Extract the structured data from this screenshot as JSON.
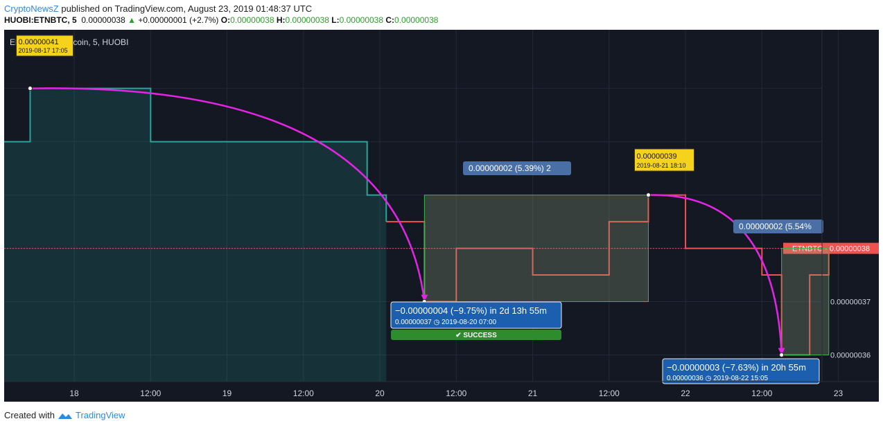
{
  "header": {
    "brand": "CryptoNewsZ",
    "published": " published on TradingView.com, August 23, 2019 01:48:37 UTC",
    "symbol": "HUOBI:ETNBTC, 5",
    "last": "0.00000038",
    "change": "+0.00000001 (+2.7%)",
    "o_label": "O:",
    "o_value": "0.00000038",
    "h_label": "H:",
    "h_value": "0.00000038",
    "l_label": "L:",
    "l_value": "0.00000038",
    "c_label": "C:",
    "c_value": "0.00000038"
  },
  "footer": {
    "created_with": "Created with",
    "brand": "TradingView"
  },
  "chart_data": {
    "type": "line",
    "title": "Electroneum / Bitcoin, 5, HUOBI",
    "x_ticks": [
      "18",
      "12:00",
      "19",
      "12:00",
      "20",
      "12:00",
      "21",
      "12:00",
      "22",
      "12:00",
      "23"
    ],
    "y_ticks": [
      "0.00000037",
      "0.00000036"
    ],
    "ylim": [
      3.55e-07,
      4.21e-07
    ],
    "series": [
      {
        "name": "ETNBTC",
        "x": [
          "2019-08-17 13:00",
          "2019-08-17 17:05",
          "2019-08-18 00:00",
          "2019-08-18 12:00",
          "2019-08-19 00:00",
          "2019-08-19 12:00",
          "2019-08-19 22:00",
          "2019-08-20 01:00",
          "2019-08-20 07:00",
          "2019-08-20 12:00",
          "2019-08-21 00:00",
          "2019-08-21 12:00",
          "2019-08-21 18:10",
          "2019-08-22 00:00",
          "2019-08-22 06:00",
          "2019-08-22 12:00",
          "2019-08-22 15:05",
          "2019-08-22 19:30",
          "2019-08-22 22:30"
        ],
        "values": [
          4e-07,
          4.1e-07,
          4.1e-07,
          4e-07,
          4e-07,
          4e-07,
          3.9e-07,
          3.85e-07,
          3.7e-07,
          3.8e-07,
          3.75e-07,
          3.85e-07,
          3.9e-07,
          3.8e-07,
          3.8e-07,
          3.75e-07,
          3.6e-07,
          3.75e-07,
          3.8e-07
        ]
      }
    ],
    "last_price_label": "ETNBTC · 0.00000038",
    "grid": true,
    "annotations": [
      {
        "type": "callout",
        "price": "0.00000041",
        "time": "2019-08-17 17:05"
      },
      {
        "type": "callout",
        "price": "0.00000039",
        "time": "2019-08-21 18:10"
      },
      {
        "type": "measure",
        "text": "0.00000002 (5.39%) 2"
      },
      {
        "type": "measure",
        "text": "0.00000002 (5.54%"
      },
      {
        "type": "result",
        "line1": "−0.00000004 (−9.75%) in 2d 13h 55m",
        "price": "0.00000037",
        "date": "2019-08-20  07:00",
        "badge": "SUCCESS"
      },
      {
        "type": "result",
        "line1": "−0.00000003 (−7.63%) in 20h 55m",
        "price": "0.00000036",
        "date": "2019-08-22  15:05"
      }
    ]
  },
  "colors": {
    "background": "#141823",
    "up": "#26a69a",
    "down": "#ef5350",
    "arrow": "#e424e4",
    "callout": "#f5d31d",
    "measure": "#4a6fa5",
    "result": "#1c5fae",
    "success": "#2e8b2e"
  }
}
